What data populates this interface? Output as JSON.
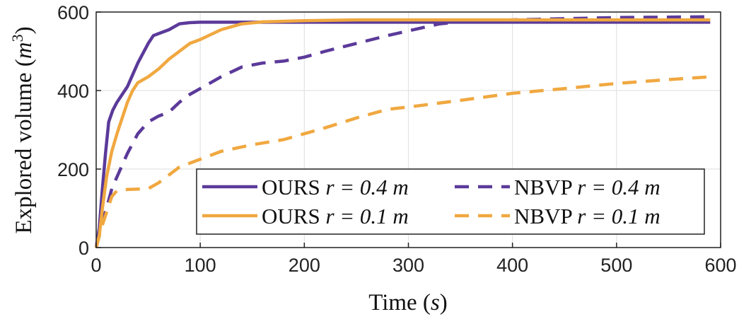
{
  "chart_data": {
    "type": "line",
    "xlabel": {
      "text": "Time (",
      "var": "s",
      "close": ")"
    },
    "ylabel": {
      "text": "Explored volume (",
      "var": "m",
      "sup": "3",
      "close": ")"
    },
    "xlim": [
      0,
      600
    ],
    "ylim": [
      0,
      600
    ],
    "xticks": [
      0,
      100,
      200,
      300,
      400,
      500,
      600
    ],
    "yticks": [
      0,
      200,
      400,
      600
    ],
    "grid": true,
    "legend_position": "bottom-right",
    "series": [
      {
        "name": "OURS r = 0.4 m",
        "label_main": "OURS",
        "label_math": "r = 0.4 m",
        "color": "#5b3a9a",
        "dash": "solid",
        "points": [
          [
            0,
            0
          ],
          [
            3,
            50
          ],
          [
            6,
            150
          ],
          [
            9,
            240
          ],
          [
            12,
            320
          ],
          [
            16,
            350
          ],
          [
            20,
            370
          ],
          [
            25,
            390
          ],
          [
            30,
            410
          ],
          [
            35,
            440
          ],
          [
            40,
            470
          ],
          [
            45,
            495
          ],
          [
            50,
            520
          ],
          [
            55,
            540
          ],
          [
            60,
            545
          ],
          [
            70,
            555
          ],
          [
            80,
            570
          ],
          [
            90,
            573
          ],
          [
            100,
            574
          ],
          [
            150,
            574
          ],
          [
            200,
            574
          ],
          [
            300,
            574
          ],
          [
            400,
            574
          ],
          [
            500,
            574
          ],
          [
            590,
            574
          ]
        ]
      },
      {
        "name": "NBVP r = 0.4 m",
        "label_main": "NBVP",
        "label_math": "r = 0.4 m",
        "color": "#5b3a9a",
        "dash": "dashed",
        "points": [
          [
            0,
            0
          ],
          [
            5,
            60
          ],
          [
            10,
            100
          ],
          [
            15,
            150
          ],
          [
            20,
            180
          ],
          [
            25,
            210
          ],
          [
            30,
            240
          ],
          [
            40,
            290
          ],
          [
            50,
            320
          ],
          [
            60,
            335
          ],
          [
            70,
            345
          ],
          [
            80,
            370
          ],
          [
            90,
            390
          ],
          [
            100,
            405
          ],
          [
            120,
            435
          ],
          [
            140,
            460
          ],
          [
            160,
            470
          ],
          [
            180,
            475
          ],
          [
            200,
            485
          ],
          [
            220,
            500
          ],
          [
            250,
            520
          ],
          [
            280,
            540
          ],
          [
            300,
            552
          ],
          [
            330,
            570
          ],
          [
            350,
            575
          ],
          [
            400,
            580
          ],
          [
            450,
            583
          ],
          [
            500,
            586
          ],
          [
            550,
            587
          ],
          [
            590,
            588
          ]
        ]
      },
      {
        "name": "OURS r = 0.1 m",
        "label_main": "OURS",
        "label_math": "r = 0.1 m",
        "color": "#f0a840",
        "dash": "solid",
        "points": [
          [
            0,
            0
          ],
          [
            3,
            30
          ],
          [
            6,
            100
          ],
          [
            10,
            180
          ],
          [
            15,
            245
          ],
          [
            20,
            290
          ],
          [
            25,
            330
          ],
          [
            30,
            370
          ],
          [
            35,
            400
          ],
          [
            40,
            420
          ],
          [
            50,
            435
          ],
          [
            60,
            455
          ],
          [
            70,
            480
          ],
          [
            80,
            500
          ],
          [
            90,
            520
          ],
          [
            100,
            530
          ],
          [
            120,
            555
          ],
          [
            140,
            570
          ],
          [
            160,
            575
          ],
          [
            200,
            578
          ],
          [
            250,
            580
          ],
          [
            300,
            580
          ],
          [
            400,
            580
          ],
          [
            500,
            580
          ],
          [
            590,
            580
          ]
        ]
      },
      {
        "name": "NBVP r = 0.1 m",
        "label_main": "NBVP",
        "label_math": "r = 0.1 m",
        "color": "#f0a840",
        "dash": "dashed",
        "points": [
          [
            0,
            0
          ],
          [
            5,
            50
          ],
          [
            10,
            90
          ],
          [
            15,
            130
          ],
          [
            20,
            145
          ],
          [
            30,
            148
          ],
          [
            50,
            150
          ],
          [
            60,
            165
          ],
          [
            70,
            185
          ],
          [
            80,
            205
          ],
          [
            100,
            225
          ],
          [
            120,
            245
          ],
          [
            150,
            262
          ],
          [
            180,
            275
          ],
          [
            200,
            290
          ],
          [
            220,
            305
          ],
          [
            250,
            330
          ],
          [
            280,
            352
          ],
          [
            300,
            358
          ],
          [
            350,
            375
          ],
          [
            400,
            393
          ],
          [
            450,
            405
          ],
          [
            500,
            418
          ],
          [
            550,
            428
          ],
          [
            590,
            435
          ]
        ]
      }
    ]
  }
}
